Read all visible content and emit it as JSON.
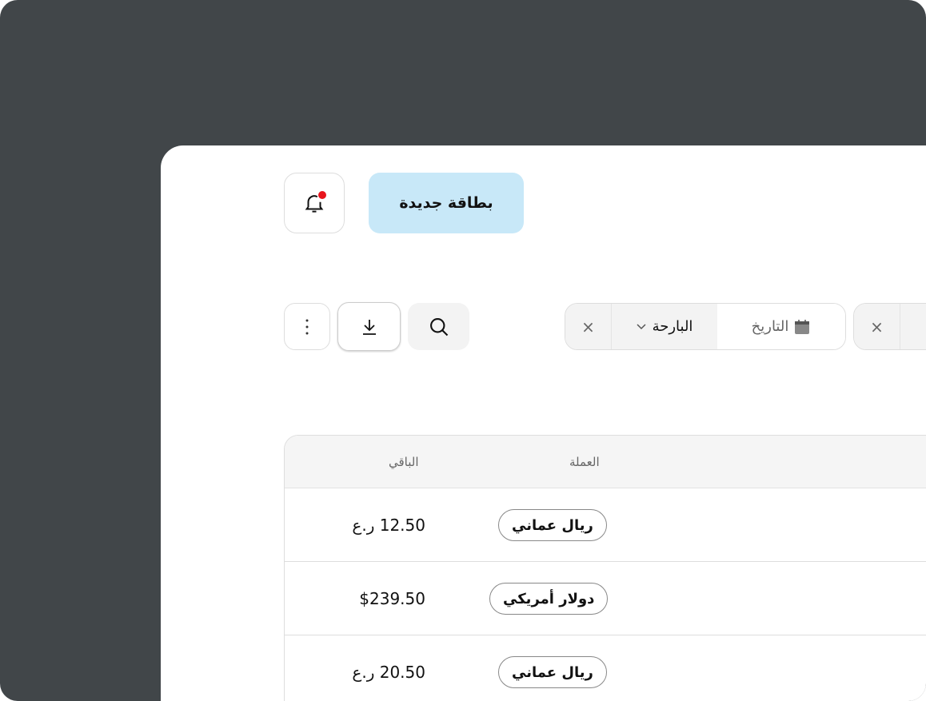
{
  "header": {
    "new_card_label": "بطاقة جديدة"
  },
  "toolbar": {
    "filter": {
      "label": "التاريخ",
      "value": "البارحة",
      "clear": "×"
    },
    "filter2": {
      "clear": "×"
    }
  },
  "table": {
    "columns": [
      "العملة",
      "الباقي"
    ],
    "rows": [
      {
        "currency": "ريال عماني",
        "balance": "12.50 ر.ع"
      },
      {
        "currency": "دولار أمريكي",
        "balance": "$239.50"
      },
      {
        "currency": "ريال عماني",
        "balance": "20.50 ر.ع"
      }
    ]
  },
  "colors": {
    "frame": "#414649",
    "accent": "#c8e8f8",
    "notification": "#e8141c"
  }
}
